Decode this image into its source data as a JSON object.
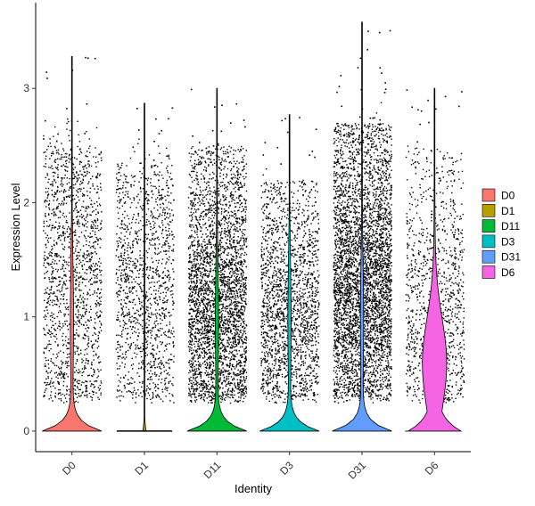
{
  "chart_data": {
    "type": "violin",
    "title": "",
    "xlabel": "Identity",
    "ylabel": "Expression Level",
    "ylim": [
      -0.18,
      3.75
    ],
    "yticks": [
      0,
      1,
      2,
      3
    ],
    "categories": [
      "D0",
      "D1",
      "D11",
      "D3",
      "D31",
      "D6"
    ],
    "legend": {
      "position": "right",
      "entries": [
        "D0",
        "D1",
        "D11",
        "D3",
        "D31",
        "D6"
      ]
    },
    "grid": false,
    "series": [
      {
        "name": "D0",
        "color": "#F8766D",
        "max": 3.28,
        "median": 0,
        "upper_quartile": 0.02,
        "dense_points_band": [
          0.3,
          2.5
        ],
        "shape_peak_width": 0.9
      },
      {
        "name": "D1",
        "color": "#B79F00",
        "max": 2.87,
        "median": 0,
        "upper_quartile": 0,
        "dense_points_band": [
          0.3,
          2.35
        ],
        "shape_peak_width": 0.05
      },
      {
        "name": "D11",
        "color": "#00BA38",
        "max": 3.0,
        "median": 0,
        "upper_quartile": 0.5,
        "dense_points_band": [
          0.3,
          2.5
        ],
        "shape_peak_width": 0.9
      },
      {
        "name": "D3",
        "color": "#00BFC4",
        "max": 2.77,
        "median": 0,
        "upper_quartile": 0.4,
        "dense_points_band": [
          0.3,
          2.2
        ],
        "shape_peak_width": 0.9
      },
      {
        "name": "D31",
        "color": "#619CFF",
        "max": 3.58,
        "median": 0,
        "upper_quartile": 0.7,
        "dense_points_band": [
          0.3,
          2.7
        ],
        "shape_peak_width": 0.9
      },
      {
        "name": "D6",
        "color": "#F564E3",
        "max": 3.0,
        "median": 0.6,
        "upper_quartile": 1.4,
        "dense_points_band": [
          0.3,
          2.5
        ],
        "shape_peak_width": 0.9
      }
    ]
  }
}
